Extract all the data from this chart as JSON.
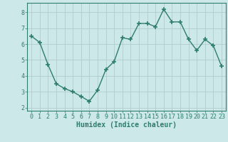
{
  "x": [
    0,
    1,
    2,
    3,
    4,
    5,
    6,
    7,
    8,
    9,
    10,
    11,
    12,
    13,
    14,
    15,
    16,
    17,
    18,
    19,
    20,
    21,
    22,
    23
  ],
  "y": [
    6.5,
    6.1,
    4.7,
    3.5,
    3.2,
    3.0,
    2.7,
    2.4,
    3.1,
    4.4,
    4.9,
    6.4,
    6.3,
    7.3,
    7.3,
    7.1,
    8.2,
    7.4,
    7.4,
    6.3,
    5.6,
    6.3,
    5.9,
    4.6
  ],
  "line_color": "#2e7d6e",
  "bg_color": "#cce8e8",
  "grid_color": "#b0cccc",
  "xlabel": "Humidex (Indice chaleur)",
  "xlim": [
    -0.5,
    23.5
  ],
  "ylim": [
    1.8,
    8.6
  ],
  "yticks": [
    2,
    3,
    4,
    5,
    6,
    7,
    8
  ],
  "xticks": [
    0,
    1,
    2,
    3,
    4,
    5,
    6,
    7,
    8,
    9,
    10,
    11,
    12,
    13,
    14,
    15,
    16,
    17,
    18,
    19,
    20,
    21,
    22,
    23
  ],
  "marker": "+",
  "markersize": 4,
  "linewidth": 1.0,
  "xlabel_fontsize": 7,
  "tick_fontsize": 6,
  "tick_color": "#2e7d6e",
  "axis_color": "#2e7d6e"
}
